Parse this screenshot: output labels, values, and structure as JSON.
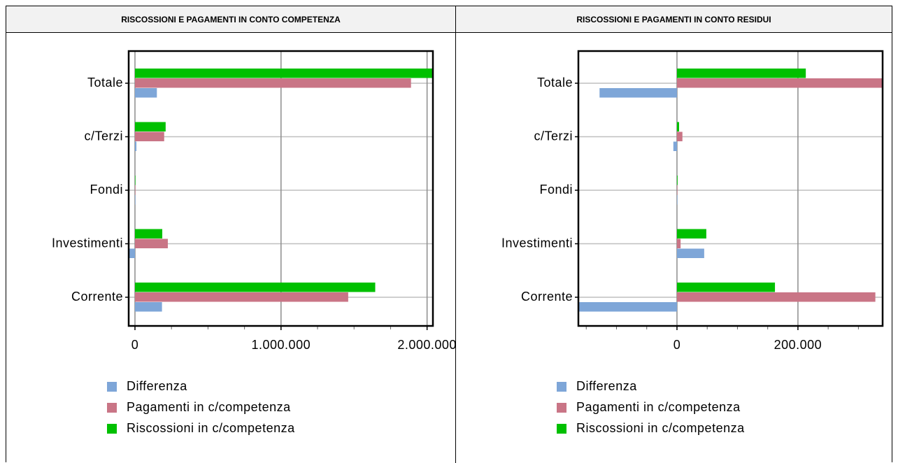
{
  "chart_data": [
    {
      "type": "bar",
      "orientation": "horizontal",
      "title": "RISCOSSIONI E PAGAMENTI IN CONTO COMPETENZA",
      "categories": [
        "Corrente",
        "Investimenti",
        "Fondi",
        "c/Terzi",
        "Totale"
      ],
      "series": [
        {
          "name": "Differenza",
          "color": "#7ea6d8",
          "values": [
            185000,
            -38000,
            3000,
            10000,
            150000
          ]
        },
        {
          "name": "Pagamenti in c/competenza",
          "color": "#c97586",
          "values": [
            1460000,
            225000,
            0,
            200000,
            1890000
          ]
        },
        {
          "name": "Riscossioni in c/competenza",
          "color": "#00c000",
          "values": [
            1645000,
            187000,
            3000,
            210000,
            2040000
          ]
        }
      ],
      "xlim": [
        -43000,
        2040000
      ],
      "xticks": [
        0,
        {
          "value": 1000000,
          "label": "1.000.000"
        },
        {
          "value": 2000000,
          "label": "2.000.000"
        }
      ],
      "xticks_minor": [
        250000,
        500000,
        750000,
        1250000,
        1500000,
        1750000
      ],
      "grid": true
    },
    {
      "type": "bar",
      "orientation": "horizontal",
      "title": "RISCOSSIONI E PAGAMENTI IN CONTO RESIDUI",
      "categories": [
        "Corrente",
        "Investimenti",
        "Fondi",
        "c/Terzi",
        "Totale"
      ],
      "series": [
        {
          "name": "Differenza",
          "color": "#7ea6d8",
          "values": [
            -163000,
            45000,
            500,
            -6000,
            -128000
          ]
        },
        {
          "name": "Pagamenti in c/competenza",
          "color": "#c97586",
          "values": [
            328000,
            6000,
            500,
            9000,
            340000
          ]
        },
        {
          "name": "Riscossioni in c/competenza",
          "color": "#00c000",
          "values": [
            162000,
            48500,
            1000,
            3500,
            213000
          ]
        }
      ],
      "xlim": [
        -163000,
        340000
      ],
      "xticks": [
        0,
        {
          "value": 200000,
          "label": "200.000"
        }
      ],
      "xticks_minor": [
        -150000,
        -100000,
        -50000,
        50000,
        100000,
        150000,
        250000,
        300000
      ],
      "grid": true
    }
  ]
}
